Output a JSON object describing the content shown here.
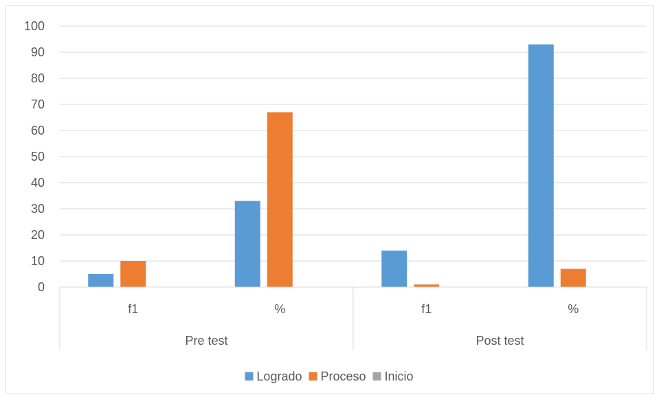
{
  "chart_data": {
    "type": "bar",
    "title": "",
    "xlabel": "",
    "ylabel": "",
    "ylim": [
      0,
      100
    ],
    "yticks": [
      0,
      10,
      20,
      30,
      40,
      50,
      60,
      70,
      80,
      90,
      100
    ],
    "grid": true,
    "legend_position": "bottom",
    "groups": [
      {
        "label": "Pre test",
        "categories": [
          "f1",
          "%"
        ]
      },
      {
        "label": "Post test",
        "categories": [
          "f1",
          "%"
        ]
      }
    ],
    "categories": [
      "f1",
      "%",
      "f1",
      "%"
    ],
    "series": [
      {
        "name": "Logrado",
        "color": "#5b9bd5",
        "values": [
          5,
          33,
          14,
          93
        ]
      },
      {
        "name": "Proceso",
        "color": "#ed7d31",
        "values": [
          10,
          67,
          1,
          7
        ]
      },
      {
        "name": "Inicio",
        "color": "#a5a5a5",
        "values": [
          0,
          0,
          0,
          0
        ]
      }
    ]
  }
}
